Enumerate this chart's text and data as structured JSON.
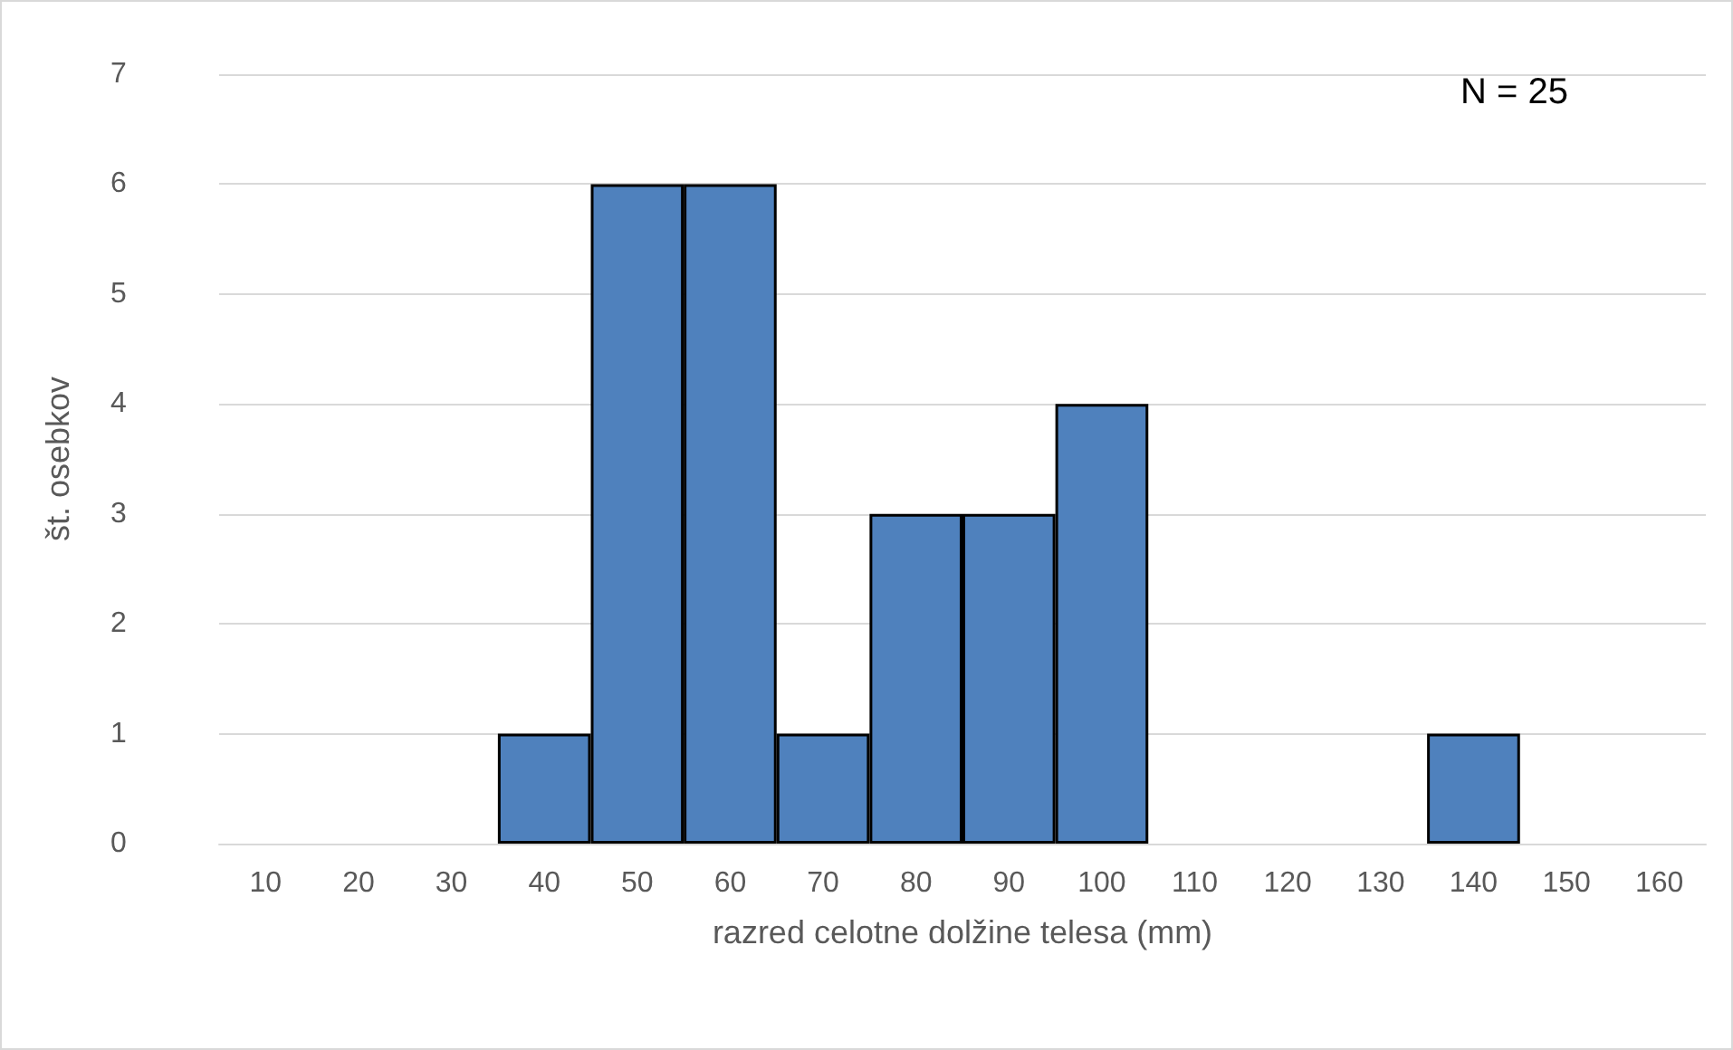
{
  "chart_data": {
    "type": "bar",
    "xlabel": "razred celotne dolžine telesa (mm)",
    "ylabel": "št. osebkov",
    "categories": [
      "10",
      "20",
      "30",
      "40",
      "50",
      "60",
      "70",
      "80",
      "90",
      "100",
      "110",
      "120",
      "130",
      "140",
      "150",
      "160"
    ],
    "values": [
      0,
      0,
      0,
      1,
      6,
      6,
      1,
      3,
      3,
      4,
      0,
      0,
      0,
      1,
      0,
      0
    ],
    "color": "#4f81bd",
    "ylim": [
      0,
      7
    ],
    "yticks": [
      0,
      1,
      2,
      3,
      4,
      5,
      6,
      7
    ],
    "grid": "y",
    "annotations": [
      "N = 25"
    ]
  }
}
